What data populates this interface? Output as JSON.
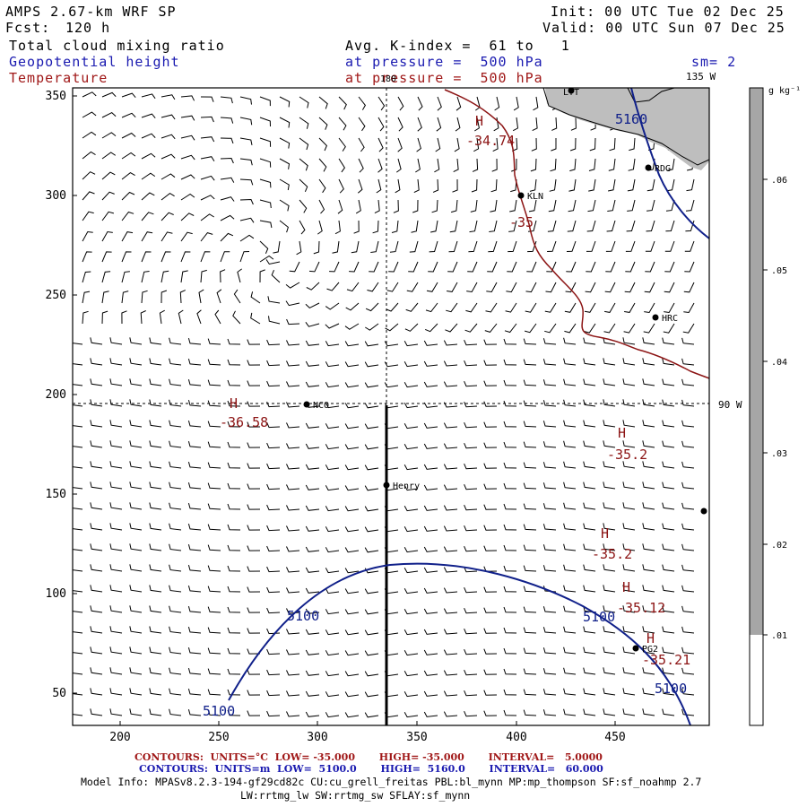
{
  "header": {
    "model": "AMPS 2.67-km WRF SP",
    "fcst_label": "Fcst:",
    "fcst_value": "120 h",
    "init": "Init: 00 UTC Tue 02 Dec 25",
    "valid": "Valid: 00 UTC Sun 07 Dec 25",
    "fields": {
      "line1": "Total cloud mixing ratio",
      "line2": "Geopotential height",
      "line3": "Temperature"
    },
    "kindex": "Avg. K-index =  61 to   1",
    "pressure1": "at pressure =  500 hPa",
    "pressure2": "at pressure =  500 hPa",
    "smoothing": "sm= 2"
  },
  "map": {
    "x_ticks": [
      "200",
      "250",
      "300",
      "350",
      "400",
      "450"
    ],
    "y_ticks": [
      "350",
      "300",
      "250",
      "200",
      "150",
      "100",
      "50"
    ],
    "lon_labels": {
      "meridian_180": "180",
      "meridian_135w": "135 W",
      "meridian_90w": "90 W"
    },
    "stations": [
      "LYT",
      "RDG",
      "KLN",
      "HRC",
      "NCO",
      "Henry",
      "PG2"
    ],
    "height_contours": [
      "5160",
      "5100",
      "5100",
      "5100"
    ],
    "temperature_labels": [
      {
        "marker": "H",
        "value": "-34.74"
      },
      {
        "marker": "",
        "value": "-35"
      },
      {
        "marker": "H",
        "value": "-36.58"
      },
      {
        "marker": "H",
        "value": "-35.2"
      },
      {
        "marker": "H",
        "value": "-35.2"
      },
      {
        "marker": "H",
        "value": "-35.12"
      },
      {
        "marker": "H",
        "value": "-35.21"
      }
    ],
    "colors": {
      "height": "#10208a",
      "temperature": "#8c1414",
      "land": "#bebebe"
    }
  },
  "colorbar": {
    "unit": "g kg⁻¹",
    "ticks": [
      ".06",
      ".05",
      ".04",
      ".03",
      ".02",
      ".01"
    ],
    "fill_color": "#a6a6a6"
  },
  "footer": {
    "temp_contours": "CONTOURS:  UNITS=°C  LOW= -35.000       HIGH= -35.000       INTERVAL=   5.0000",
    "height_contours": "CONTOURS:  UNITS=m  LOW=  5100.0       HIGH=  5160.0       INTERVAL=   60.000",
    "model_info_1": "Model Info: MPASv8.2.3-194-gf29cd82c CU:cu_grell_freitas PBL:bl_mynn MP:mp_thompson SF:sf_noahmp 2.7",
    "model_info_2": "LW:rrtmg_lw SW:rrtmg_sw SFLAY:sf_mynn"
  }
}
